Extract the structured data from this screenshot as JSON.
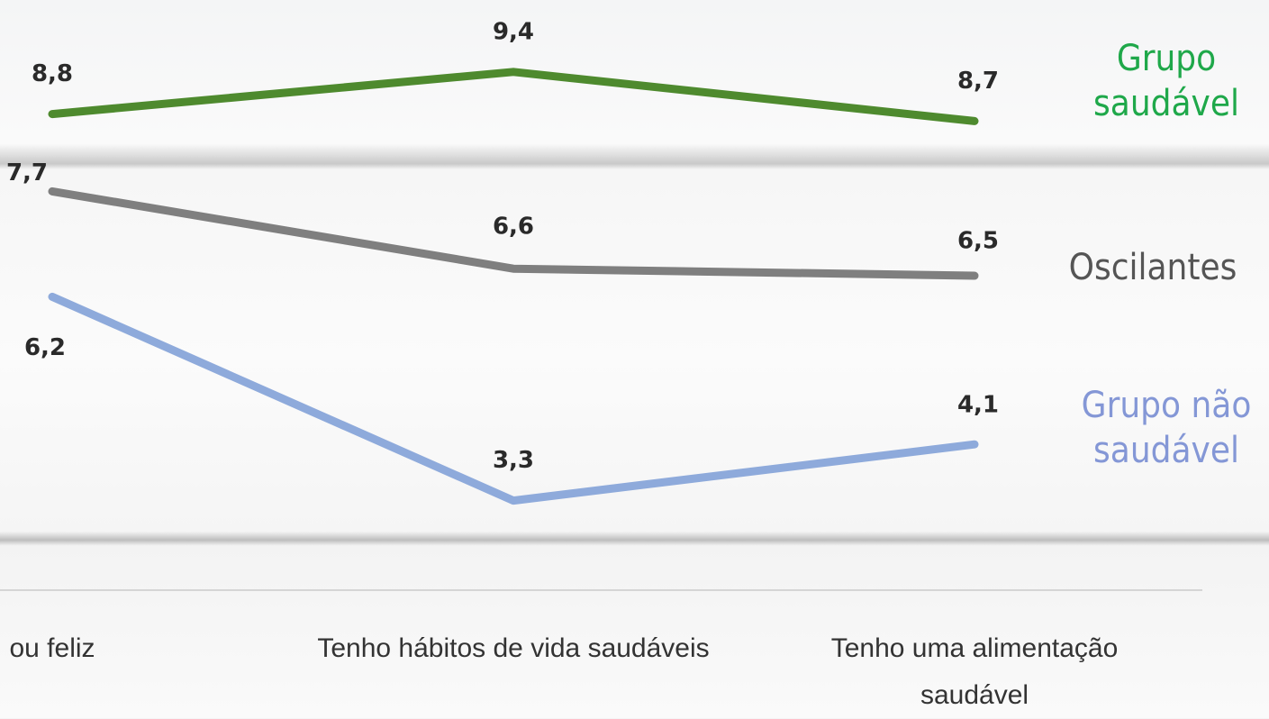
{
  "chart_data": {
    "type": "line",
    "categories": [
      "ou feliz",
      "Tenho hábitos de vida saudáveis",
      "Tenho uma alimentação saudável"
    ],
    "series": [
      {
        "name": "Grupo saudável",
        "color": "#4e8a2e",
        "values": [
          8.8,
          9.4,
          8.7
        ],
        "value_labels": [
          "8,8",
          "9,4",
          "8,7"
        ]
      },
      {
        "name": "Oscilantes",
        "color": "#7f7f7f",
        "values": [
          7.7,
          6.6,
          6.5
        ],
        "value_labels": [
          "7,7",
          "6,6",
          "6,5"
        ]
      },
      {
        "name": "Grupo não saudável",
        "color": "#8eaadb",
        "values": [
          6.2,
          3.3,
          4.1
        ],
        "value_labels": [
          "6,2",
          "3,3",
          "4,1"
        ]
      }
    ],
    "ylim": [
      0,
      10
    ]
  }
}
